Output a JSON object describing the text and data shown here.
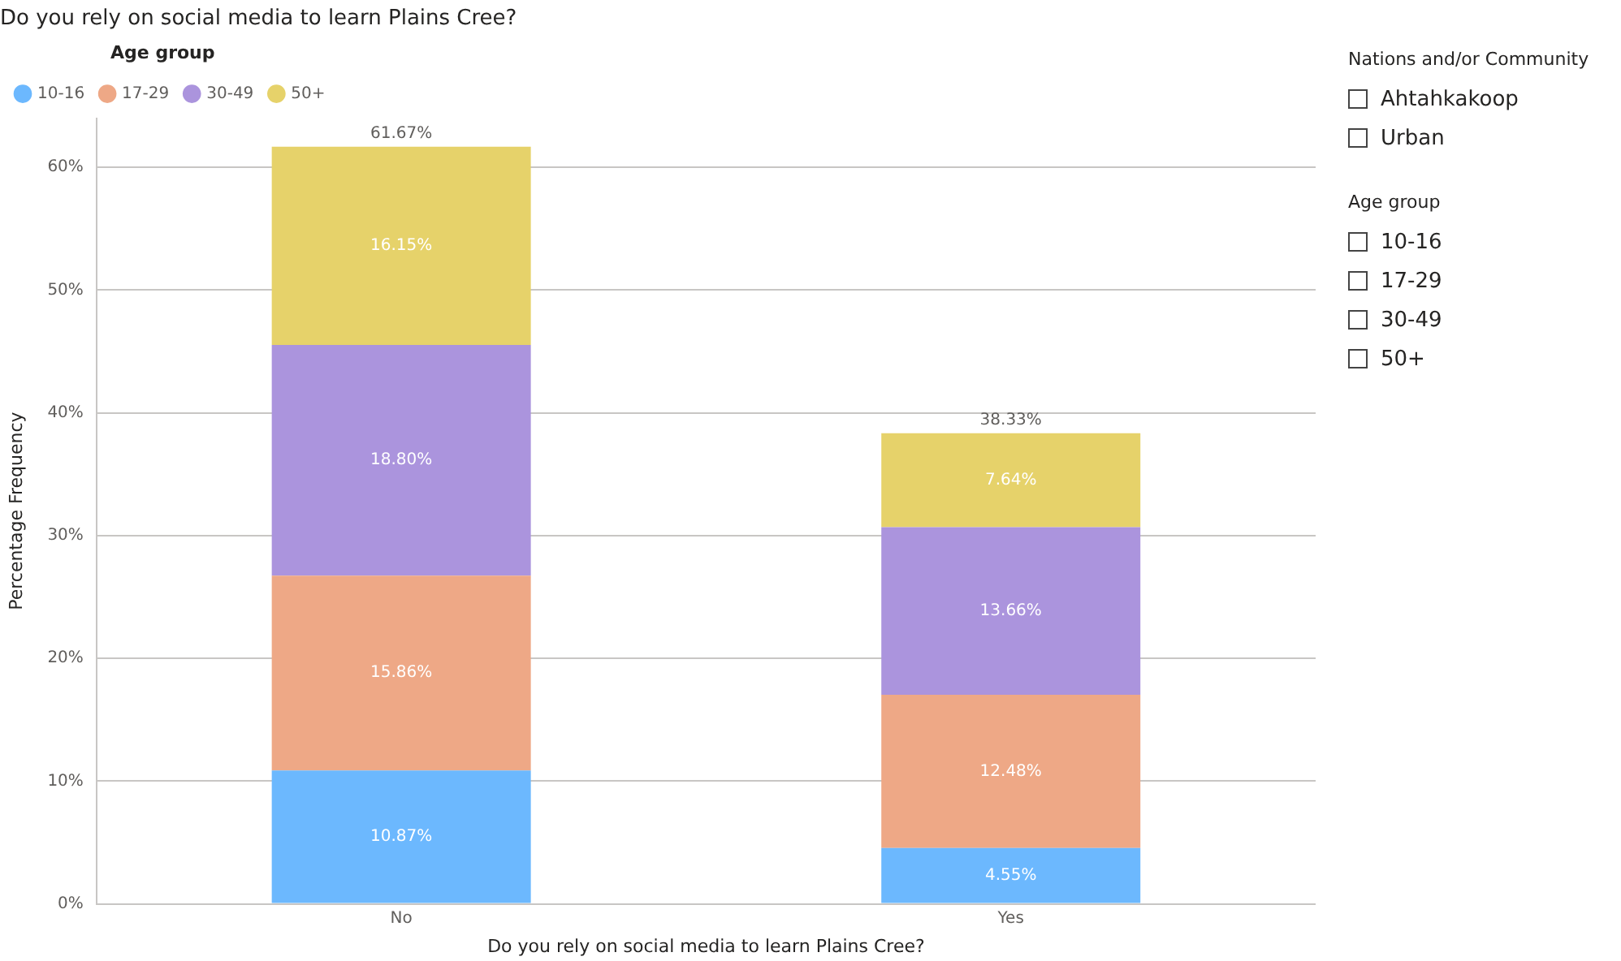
{
  "chart_data": [
    {
      "type": "bar",
      "title": "Do you rely on social media to learn Plains Cree?",
      "xlabel": "Do you rely on social media to learn Plains Cree?",
      "ylabel": "Percentage Frequency",
      "legend_title": "Age group",
      "legend": "top left",
      "stacked": true,
      "grid": "y",
      "categories": [
        "No",
        "Yes"
      ],
      "series": [
        {
          "name": "10-16",
          "color": "#6cb8fe",
          "values": [
            10.87,
            4.55
          ],
          "value_labels": [
            "10.87%",
            "4.55%"
          ]
        },
        {
          "name": "17-29",
          "color": "#eea886",
          "values": [
            15.86,
            12.48
          ],
          "value_labels": [
            "15.86%",
            "12.48%"
          ]
        },
        {
          "name": "30-49",
          "color": "#ab94dd",
          "values": [
            18.8,
            13.66
          ],
          "value_labels": [
            "18.80%",
            "13.66%"
          ]
        },
        {
          "name": "50+",
          "color": "#e6d26a",
          "values": [
            16.15,
            7.64
          ],
          "value_labels": [
            "16.15%",
            "7.64%"
          ]
        }
      ],
      "totals": [
        "61.67%",
        "38.33%"
      ],
      "ylim": [
        0,
        64
      ],
      "yticks": [
        {
          "value": 0,
          "label": "0%"
        },
        {
          "value": 10,
          "label": "10%"
        },
        {
          "value": 20,
          "label": "20%"
        },
        {
          "value": 30,
          "label": "30%"
        },
        {
          "value": 40,
          "label": "40%"
        },
        {
          "value": 50,
          "label": "50%"
        },
        {
          "value": 60,
          "label": "60%"
        }
      ]
    },
    {
      "type": "other",
      "title": "Nations and/or Community",
      "annotations": [
        "Ahtahkakoop",
        "Urban"
      ]
    },
    {
      "type": "other",
      "title": "Age group",
      "annotations": [
        "10-16",
        "17-29",
        "30-49",
        "50+"
      ]
    }
  ]
}
